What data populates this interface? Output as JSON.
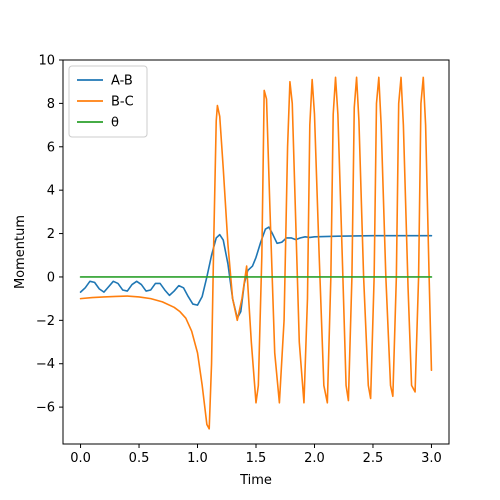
{
  "chart_data": {
    "type": "line",
    "title": "",
    "xlabel": "Time",
    "ylabel": "Momentum",
    "xlim": [
      -0.15,
      3.15
    ],
    "ylim": [
      -7.7,
      10
    ],
    "x_ticks": [
      0.0,
      0.5,
      1.0,
      1.5,
      2.0,
      2.5,
      3.0
    ],
    "x_tick_labels": [
      "0.0",
      "0.5",
      "1.0",
      "1.5",
      "2.0",
      "2.5",
      "3.0"
    ],
    "y_ticks": [
      -6,
      -4,
      -2,
      0,
      2,
      4,
      6,
      8,
      10
    ],
    "y_tick_labels": [
      "−6",
      "−4",
      "−2",
      "0",
      "2",
      "4",
      "6",
      "8",
      "10"
    ],
    "grid": false,
    "legend_position": "top-left",
    "series": [
      {
        "name": "A-B",
        "color": "#1f77b4",
        "points": [
          [
            0.0,
            -0.7
          ],
          [
            0.04,
            -0.5
          ],
          [
            0.08,
            -0.2
          ],
          [
            0.12,
            -0.25
          ],
          [
            0.16,
            -0.55
          ],
          [
            0.2,
            -0.7
          ],
          [
            0.24,
            -0.45
          ],
          [
            0.28,
            -0.2
          ],
          [
            0.32,
            -0.3
          ],
          [
            0.36,
            -0.6
          ],
          [
            0.4,
            -0.65
          ],
          [
            0.44,
            -0.35
          ],
          [
            0.48,
            -0.2
          ],
          [
            0.52,
            -0.35
          ],
          [
            0.56,
            -0.65
          ],
          [
            0.6,
            -0.6
          ],
          [
            0.64,
            -0.3
          ],
          [
            0.68,
            -0.3
          ],
          [
            0.72,
            -0.6
          ],
          [
            0.76,
            -0.85
          ],
          [
            0.8,
            -0.65
          ],
          [
            0.84,
            -0.4
          ],
          [
            0.88,
            -0.5
          ],
          [
            0.92,
            -0.9
          ],
          [
            0.96,
            -1.25
          ],
          [
            1.0,
            -1.3
          ],
          [
            1.04,
            -0.9
          ],
          [
            1.08,
            0.0
          ],
          [
            1.12,
            1.0
          ],
          [
            1.16,
            1.8
          ],
          [
            1.19,
            1.95
          ],
          [
            1.22,
            1.7
          ],
          [
            1.26,
            0.6
          ],
          [
            1.3,
            -1.0
          ],
          [
            1.34,
            -1.9
          ],
          [
            1.37,
            -1.6
          ],
          [
            1.4,
            -0.3
          ],
          [
            1.43,
            0.3
          ],
          [
            1.47,
            0.5
          ],
          [
            1.5,
            0.9
          ],
          [
            1.54,
            1.6
          ],
          [
            1.58,
            2.2
          ],
          [
            1.61,
            2.3
          ],
          [
            1.64,
            2.0
          ],
          [
            1.68,
            1.55
          ],
          [
            1.72,
            1.6
          ],
          [
            1.76,
            1.8
          ],
          [
            1.8,
            1.8
          ],
          [
            1.84,
            1.72
          ],
          [
            1.88,
            1.8
          ],
          [
            1.92,
            1.85
          ],
          [
            1.96,
            1.82
          ],
          [
            2.0,
            1.85
          ],
          [
            2.2,
            1.88
          ],
          [
            2.5,
            1.9
          ],
          [
            2.8,
            1.9
          ],
          [
            3.0,
            1.9
          ]
        ]
      },
      {
        "name": "B-C",
        "color": "#ff7f0e",
        "points": [
          [
            0.0,
            -1.0
          ],
          [
            0.1,
            -0.95
          ],
          [
            0.2,
            -0.92
          ],
          [
            0.3,
            -0.9
          ],
          [
            0.4,
            -0.88
          ],
          [
            0.5,
            -0.92
          ],
          [
            0.6,
            -1.0
          ],
          [
            0.7,
            -1.15
          ],
          [
            0.8,
            -1.4
          ],
          [
            0.85,
            -1.6
          ],
          [
            0.9,
            -1.9
          ],
          [
            0.95,
            -2.5
          ],
          [
            1.0,
            -3.5
          ],
          [
            1.04,
            -5.0
          ],
          [
            1.08,
            -6.8
          ],
          [
            1.1,
            -7.0
          ],
          [
            1.12,
            -4.0
          ],
          [
            1.14,
            2.0
          ],
          [
            1.16,
            7.2
          ],
          [
            1.17,
            7.9
          ],
          [
            1.19,
            7.4
          ],
          [
            1.22,
            5.0
          ],
          [
            1.26,
            1.5
          ],
          [
            1.3,
            -1.0
          ],
          [
            1.34,
            -2.0
          ],
          [
            1.38,
            -1.0
          ],
          [
            1.42,
            0.5
          ],
          [
            1.46,
            -3.0
          ],
          [
            1.5,
            -5.8
          ],
          [
            1.52,
            -5.0
          ],
          [
            1.55,
            1.0
          ],
          [
            1.57,
            8.6
          ],
          [
            1.59,
            8.2
          ],
          [
            1.62,
            3.0
          ],
          [
            1.66,
            -3.5
          ],
          [
            1.7,
            -5.8
          ],
          [
            1.74,
            -2.0
          ],
          [
            1.77,
            6.0
          ],
          [
            1.79,
            9.0
          ],
          [
            1.81,
            8.0
          ],
          [
            1.84,
            2.5
          ],
          [
            1.87,
            -3.0
          ],
          [
            1.91,
            -5.8
          ],
          [
            1.94,
            -1.0
          ],
          [
            1.96,
            7.0
          ],
          [
            1.98,
            9.1
          ],
          [
            2.0,
            7.5
          ],
          [
            2.04,
            1.0
          ],
          [
            2.08,
            -5.0
          ],
          [
            2.11,
            -5.8
          ],
          [
            2.14,
            0.0
          ],
          [
            2.16,
            7.5
          ],
          [
            2.18,
            9.2
          ],
          [
            2.2,
            7.5
          ],
          [
            2.24,
            0.5
          ],
          [
            2.27,
            -5.0
          ],
          [
            2.29,
            -5.7
          ],
          [
            2.32,
            0.0
          ],
          [
            2.34,
            7.8
          ],
          [
            2.36,
            9.2
          ],
          [
            2.38,
            7.2
          ],
          [
            2.42,
            0.0
          ],
          [
            2.46,
            -5.0
          ],
          [
            2.48,
            -5.6
          ],
          [
            2.51,
            0.0
          ],
          [
            2.53,
            8.0
          ],
          [
            2.55,
            9.2
          ],
          [
            2.57,
            7.0
          ],
          [
            2.61,
            0.0
          ],
          [
            2.65,
            -5.0
          ],
          [
            2.67,
            -5.5
          ],
          [
            2.7,
            0.0
          ],
          [
            2.72,
            8.0
          ],
          [
            2.74,
            9.2
          ],
          [
            2.76,
            7.0
          ],
          [
            2.8,
            -0.5
          ],
          [
            2.83,
            -5.0
          ],
          [
            2.86,
            -5.3
          ],
          [
            2.89,
            0.0
          ],
          [
            2.91,
            8.0
          ],
          [
            2.93,
            9.2
          ],
          [
            2.95,
            7.0
          ],
          [
            2.98,
            0.0
          ],
          [
            3.0,
            -4.3
          ]
        ]
      },
      {
        "name": "θ",
        "color": "#2ca02c",
        "points": [
          [
            0.0,
            0.0
          ],
          [
            3.0,
            0.0
          ]
        ]
      }
    ]
  }
}
